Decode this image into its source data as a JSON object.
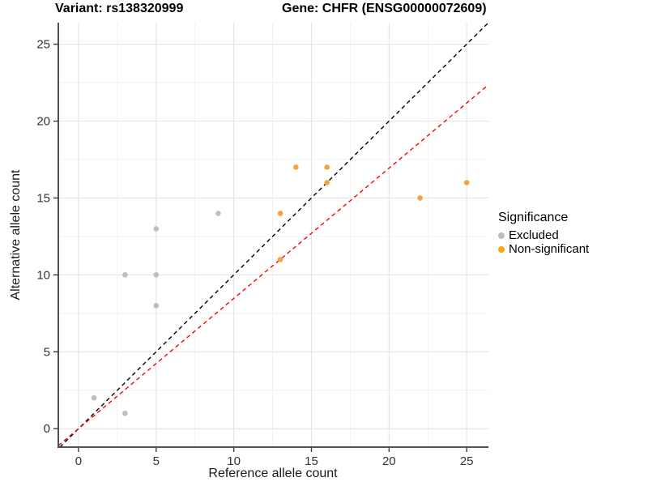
{
  "chart_data": {
    "type": "scatter",
    "title_left": "Variant: rs138320999",
    "title_right": "Gene: CHFR (ENSG00000072609)",
    "xlabel": "Reference allele count",
    "ylabel": "Alternative allele count",
    "xlim": [
      -1.3,
      26.4
    ],
    "ylim": [
      -1.2,
      26.4
    ],
    "xticks": [
      0,
      5,
      10,
      15,
      20,
      25
    ],
    "yticks": [
      0,
      5,
      10,
      15,
      20,
      25
    ],
    "grid": true,
    "colors": {
      "major_grid": "#e4e4e4",
      "minor_grid": "#f1f1f1",
      "axis_line": "#3c3c3c",
      "tick_text": "#333333"
    },
    "legend": {
      "title": "Significance",
      "position": "right",
      "items": [
        {
          "label": "Excluded",
          "color": "#bebebe"
        },
        {
          "label": "Non-significant",
          "color": "#ffa413"
        }
      ]
    },
    "series": [
      {
        "name": "Excluded",
        "color": "#bebebe",
        "points": [
          [
            1,
            2
          ],
          [
            3,
            1
          ],
          [
            3,
            10
          ],
          [
            5,
            8
          ],
          [
            5,
            10
          ],
          [
            5,
            13
          ],
          [
            9,
            14
          ]
        ]
      },
      {
        "name": "Non-significant",
        "color": "#f9a03f",
        "points": [
          [
            13,
            11
          ],
          [
            13,
            14
          ],
          [
            14,
            17
          ],
          [
            16,
            16
          ],
          [
            16,
            17
          ],
          [
            22,
            15
          ],
          [
            25,
            16
          ]
        ]
      }
    ],
    "lines": [
      {
        "name": "identity-line",
        "slope": 1,
        "intercept": 0,
        "color": "#000000",
        "style": "dashed"
      },
      {
        "name": "fit-line",
        "slope": 0.847,
        "intercept": 0,
        "color": "#ff0000",
        "style": "dashed"
      }
    ]
  }
}
